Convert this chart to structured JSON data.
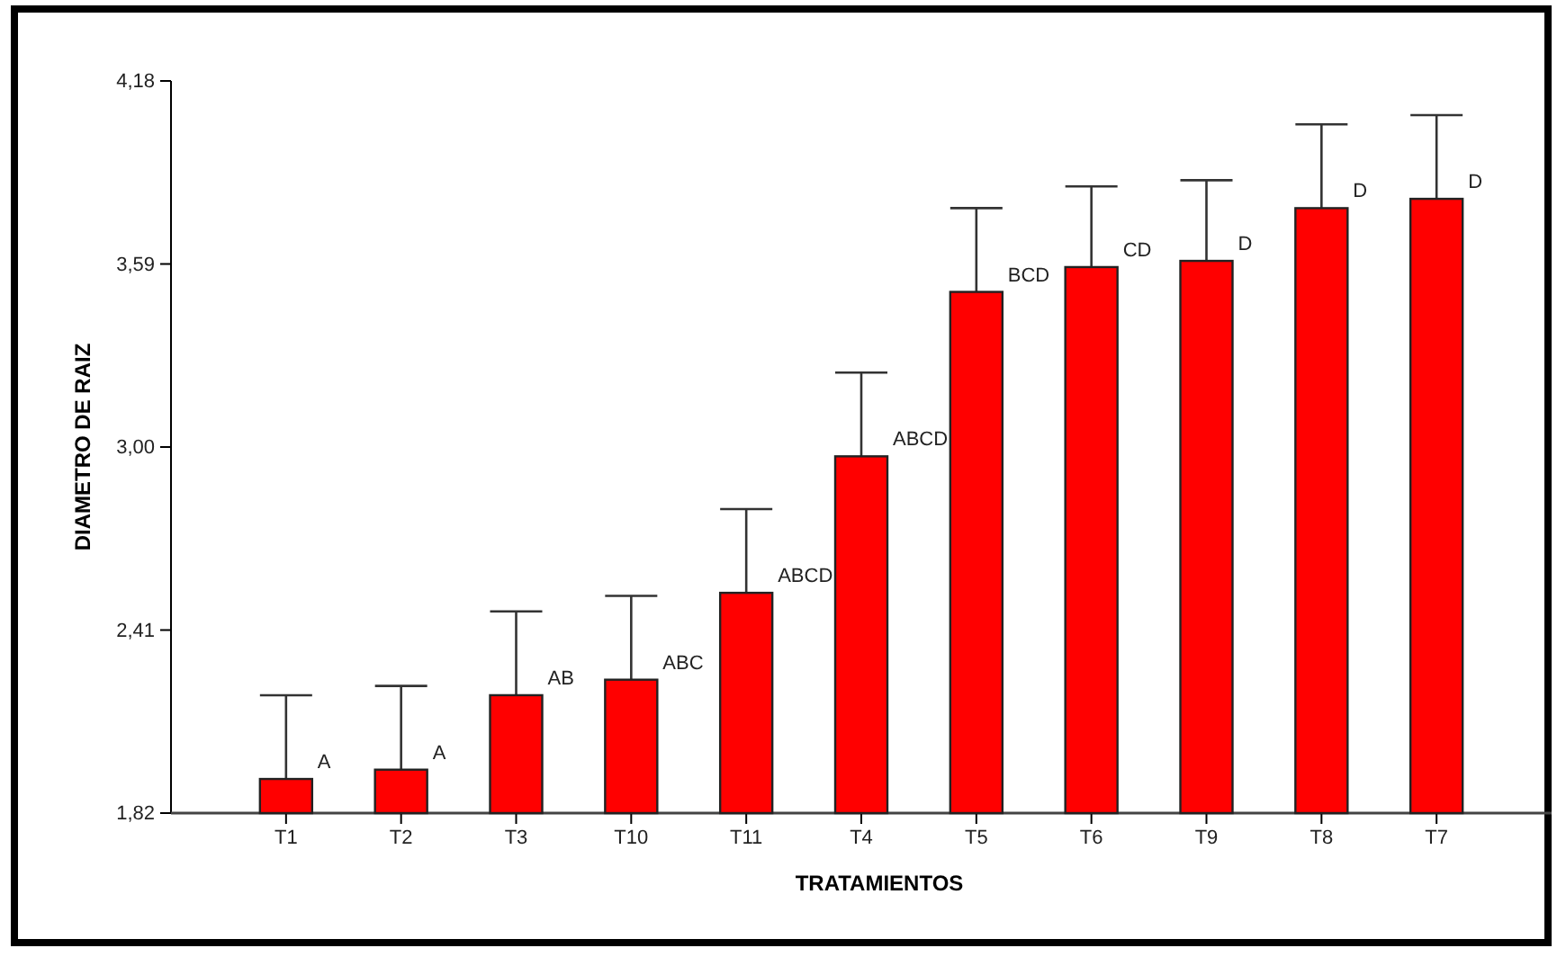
{
  "chart_data": {
    "type": "bar",
    "xlabel": "TRATAMIENTOS",
    "ylabel": "DIAMETRO DE RAIZ",
    "categories": [
      "T1",
      "T2",
      "T3",
      "T10",
      "T11",
      "T4",
      "T5",
      "T6",
      "T9",
      "T8",
      "T7"
    ],
    "values": [
      1.93,
      1.96,
      2.2,
      2.25,
      2.53,
      2.97,
      3.5,
      3.58,
      3.6,
      3.77,
      3.8
    ],
    "errors": [
      [
        1.93,
        2.2
      ],
      [
        1.96,
        2.23
      ],
      [
        2.2,
        2.47
      ],
      [
        2.25,
        2.52
      ],
      [
        2.53,
        2.8
      ],
      [
        2.97,
        3.24
      ],
      [
        3.5,
        3.77
      ],
      [
        3.58,
        3.84
      ],
      [
        3.6,
        3.86
      ],
      [
        3.77,
        4.04
      ],
      [
        3.8,
        4.07
      ]
    ],
    "color": "#ff0000",
    "ylim": [
      1.82,
      4.18
    ],
    "yticks": [
      {
        "value": 1.82,
        "label": "1,82"
      },
      {
        "value": 2.41,
        "label": "2,41"
      },
      {
        "value": 3.0,
        "label": "3,00"
      },
      {
        "value": 3.59,
        "label": "3,59"
      },
      {
        "value": 4.18,
        "label": "4,18"
      }
    ],
    "grid": false,
    "annotations": [
      {
        "text": "A",
        "x": "T1",
        "y": 1.93
      },
      {
        "text": "A",
        "x": "T2",
        "y": 1.96
      },
      {
        "text": "AB",
        "x": "T3",
        "y": 2.2
      },
      {
        "text": "ABC",
        "x": "T10",
        "y": 2.25
      },
      {
        "text": "ABCD",
        "x": "T11",
        "y": 2.53
      },
      {
        "text": "ABCD",
        "x": "T4",
        "y": 2.97
      },
      {
        "text": "BCD",
        "x": "T5",
        "y": 3.5
      },
      {
        "text": "CD",
        "x": "T6",
        "y": 3.58
      },
      {
        "text": "D",
        "x": "T9",
        "y": 3.6
      },
      {
        "text": "D",
        "x": "T8",
        "y": 3.77
      },
      {
        "text": "D",
        "x": "T7",
        "y": 3.8
      }
    ]
  }
}
